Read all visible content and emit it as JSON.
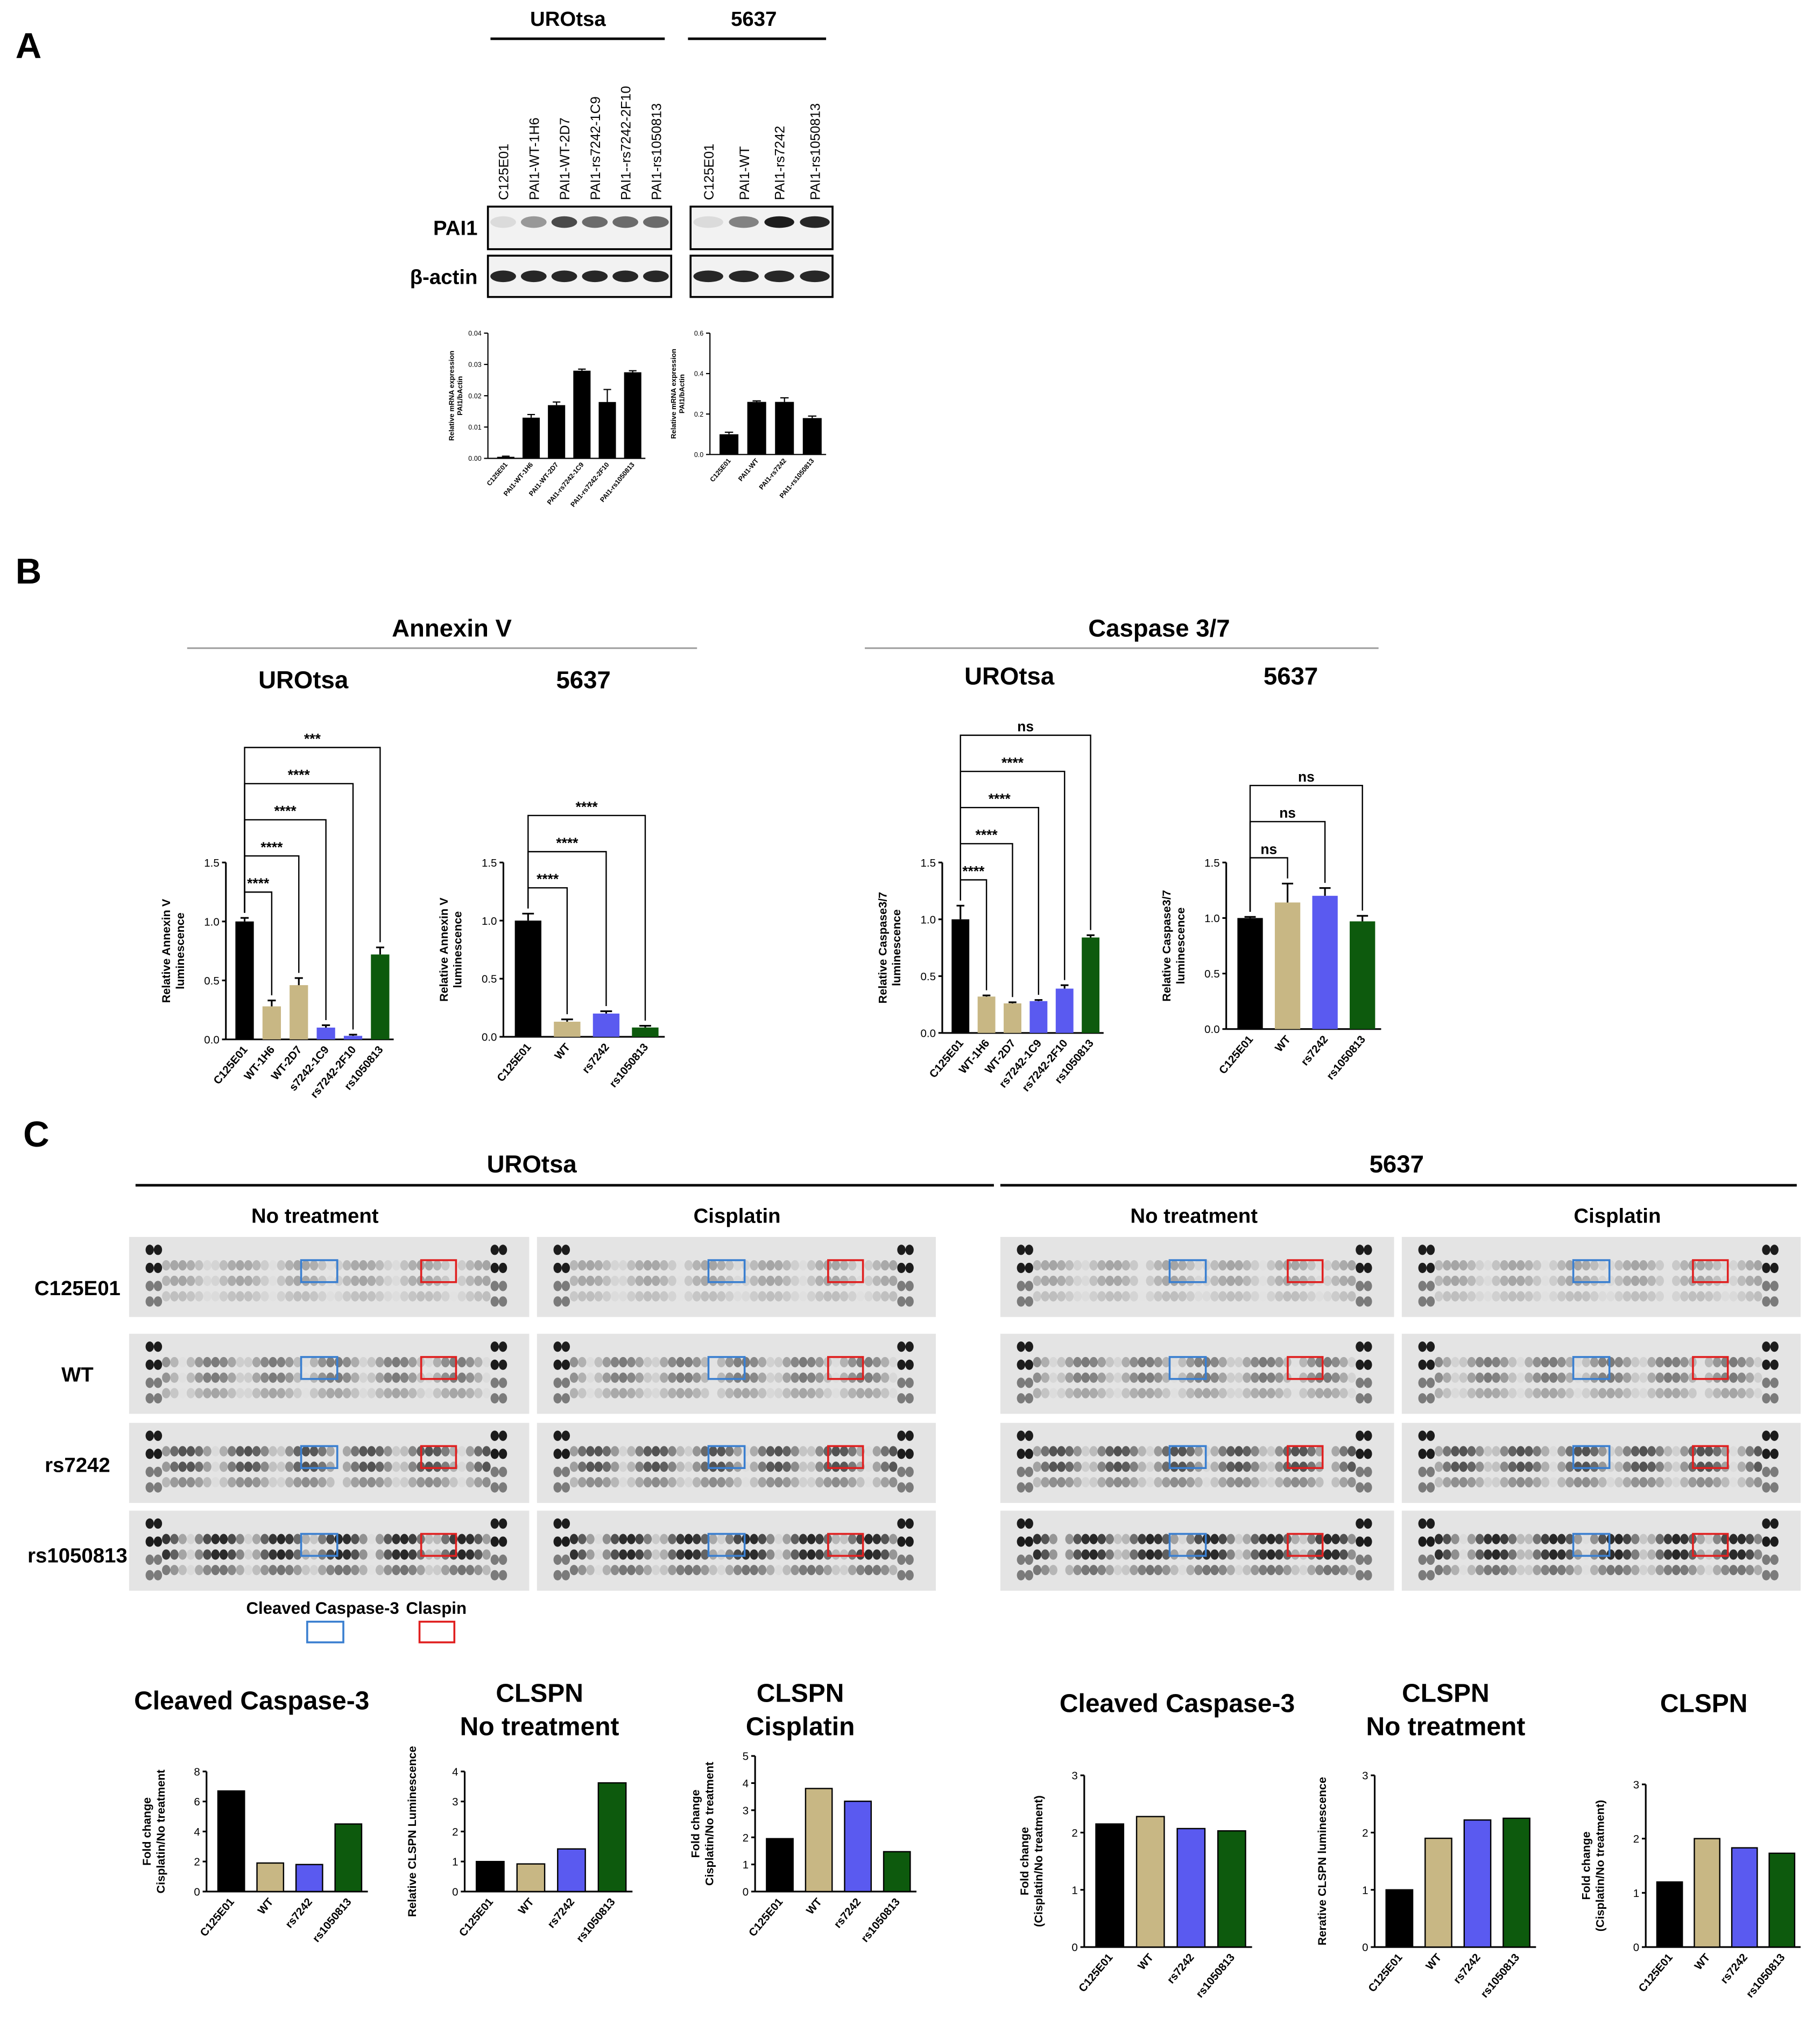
{
  "panels": {
    "a": "A",
    "b": "B",
    "c": "C"
  },
  "blot": {
    "groups": [
      {
        "name": "UROtsa",
        "lanes": [
          "C125E01",
          "PAI1-WT-1H6",
          "PAI1-WT-2D7",
          "PAI1-rs7242-1C9",
          "PAI1--rs7242-2F10",
          "PAI1-rs1050813"
        ]
      },
      {
        "name": "5637",
        "lanes": [
          "C125E01",
          "PAI1-WT",
          "PAI1-rs7242",
          "PAI1-rs1050813"
        ]
      }
    ],
    "rows": [
      "PAI1",
      "β-actin"
    ]
  },
  "apoptosis": {
    "headers": [
      "Annexin V",
      "Caspase 3/7"
    ]
  },
  "array": {
    "groups": [
      "UROtsa",
      "5637"
    ],
    "conditions": [
      "No treatment",
      "Cisplatin"
    ],
    "rows": [
      "C125E01",
      "WT",
      "rs7242",
      "rs1050813"
    ],
    "legend": [
      "Cleaved Caspase-3",
      "Claspin"
    ]
  },
  "chart_data": [
    {
      "type": "bar",
      "ylabel": [
        "Relative mRNA expression",
        "PAI1/bActin"
      ],
      "categories": [
        "C125E01",
        "PAI1-WT-1H6",
        "PAI1-WT-2D7",
        "PAI1-rs7242-1C9",
        "PAI1-rs7242-2F10",
        "PAI1-rs1050813"
      ],
      "values": [
        0.0005,
        0.013,
        0.017,
        0.028,
        0.018,
        0.0275
      ],
      "errors": [
        0.0002,
        0.001,
        0.001,
        0.0005,
        0.004,
        0.0005
      ],
      "color": "#000000",
      "ylim": [
        0,
        0.04
      ],
      "yticks": [
        {
          "value": 0,
          "label": "0.00"
        },
        0.01,
        0.02,
        0.03,
        0.04
      ]
    },
    {
      "type": "bar",
      "ylabel": [
        "Relative mRNA expression",
        "PAI1/bActin"
      ],
      "categories": [
        "C125E01",
        "PAI1-WT",
        "PAI1-rs7242",
        "PAI1-rs1050813"
      ],
      "values": [
        0.1,
        0.26,
        0.26,
        0.18
      ],
      "errors": [
        0.01,
        0.005,
        0.02,
        0.01
      ],
      "color": "#000000",
      "ylim": [
        0,
        0.6
      ],
      "yticks": [
        {
          "value": 0,
          "label": "0.0"
        },
        0.2,
        0.4,
        0.6
      ]
    },
    {
      "type": "bar",
      "title": "UROtsa",
      "ylabel": [
        "Relative Annexin V",
        "luminescence"
      ],
      "categories": [
        "C125E01",
        "WT-1H6",
        "WT-2D7",
        "s7242-1C9",
        "rs7242-2F10",
        "rs1050813"
      ],
      "values": [
        1.0,
        0.28,
        0.46,
        0.1,
        0.03,
        0.72
      ],
      "errors": [
        0.03,
        0.05,
        0.06,
        0.02,
        0.01,
        0.06
      ],
      "colors": [
        "#000000",
        "#c8b784",
        "#c8b784",
        "#5a5af0",
        "#5a5af0",
        "#0d5a0d"
      ],
      "significance": [
        "****",
        "****",
        "****",
        "****",
        "***"
      ],
      "ylim": [
        0,
        1.5
      ],
      "yticks": [
        {
          "value": 0,
          "label": "0.0"
        },
        0.5,
        {
          "value": 1,
          "label": "1.0"
        },
        1.5
      ]
    },
    {
      "type": "bar",
      "title": "5637",
      "ylabel": [
        "Relative Annexin V",
        "luminescence"
      ],
      "categories": [
        "C125E01",
        "WT",
        "rs7242",
        "rs1050813"
      ],
      "values": [
        1.0,
        0.13,
        0.2,
        0.08
      ],
      "errors": [
        0.06,
        0.02,
        0.02,
        0.015
      ],
      "colors": [
        "#000000",
        "#c8b784",
        "#5a5af0",
        "#0d5a0d"
      ],
      "significance": [
        "****",
        "****",
        "****"
      ],
      "ylim": [
        0,
        1.5
      ],
      "yticks": [
        {
          "value": 0,
          "label": "0.0"
        },
        0.5,
        {
          "value": 1,
          "label": "1.0"
        },
        1.5
      ]
    },
    {
      "type": "bar",
      "title": "UROtsa",
      "ylabel": [
        "Relative Caspase3/7",
        "luminescence"
      ],
      "categories": [
        "C125E01",
        "WT-1H6",
        "WT-2D7",
        "rs7242-1C9",
        "rs7242-2F10",
        "rs1050813"
      ],
      "values": [
        1.0,
        0.32,
        0.26,
        0.28,
        0.39,
        0.84
      ],
      "errors": [
        0.12,
        0.01,
        0.01,
        0.01,
        0.03,
        0.02
      ],
      "colors": [
        "#000000",
        "#c8b784",
        "#c8b784",
        "#5a5af0",
        "#5a5af0",
        "#0d5a0d"
      ],
      "significance": [
        "****",
        "****",
        "****",
        "****",
        "ns"
      ],
      "ylim": [
        0,
        1.5
      ],
      "yticks": [
        {
          "value": 0,
          "label": "0.0"
        },
        0.5,
        {
          "value": 1,
          "label": "1.0"
        },
        1.5
      ]
    },
    {
      "type": "bar",
      "title": "5637",
      "ylabel": [
        "Relative Caspase3/7",
        "luminescence"
      ],
      "categories": [
        "C125E01",
        "WT",
        "rs7242",
        "rs1050813"
      ],
      "values": [
        1.0,
        1.14,
        1.2,
        0.97
      ],
      "errors": [
        0.01,
        0.17,
        0.07,
        0.05
      ],
      "colors": [
        "#000000",
        "#c8b784",
        "#5a5af0",
        "#0d5a0d"
      ],
      "significance": [
        "ns",
        "ns",
        "ns"
      ],
      "ylim": [
        0,
        1.5
      ],
      "yticks": [
        {
          "value": 0,
          "label": "0.0"
        },
        0.5,
        {
          "value": 1,
          "label": "1.0"
        },
        1.5
      ]
    },
    {
      "type": "bar",
      "title": [
        "Cleaved Caspase-3"
      ],
      "ylabel": [
        "Fold change",
        "Cisplatin/No treatment"
      ],
      "categories": [
        "C125E01",
        "WT",
        "rs7242",
        "rs1050813"
      ],
      "values": [
        6.7,
        1.9,
        1.8,
        4.5
      ],
      "colors": [
        "#000000",
        "#c8b784",
        "#5a5af0",
        "#0d5a0d"
      ],
      "edgecolor": "#000000",
      "ylim": [
        0,
        8
      ],
      "yticks": [
        0,
        2,
        4,
        6,
        8
      ]
    },
    {
      "type": "bar",
      "title": [
        "CLSPN",
        "No treatment"
      ],
      "ylabel": [
        "Relative CLSPN Luminescence"
      ],
      "categories": [
        "C125E01",
        "WT",
        "rs7242",
        "rs1050813"
      ],
      "values": [
        1.0,
        0.92,
        1.42,
        3.62
      ],
      "colors": [
        "#000000",
        "#c8b784",
        "#5a5af0",
        "#0d5a0d"
      ],
      "edgecolor": "#000000",
      "ylim": [
        0,
        4
      ],
      "yticks": [
        0,
        1,
        2,
        3,
        4
      ]
    },
    {
      "type": "bar",
      "title": [
        "CLSPN",
        "Cisplatin"
      ],
      "ylabel": [
        "Fold change",
        "Cisplatin/No treatment"
      ],
      "categories": [
        "C125E01",
        "WT",
        "rs7242",
        "rs1050813"
      ],
      "values": [
        1.95,
        3.8,
        3.33,
        1.47
      ],
      "colors": [
        "#000000",
        "#c8b784",
        "#5a5af0",
        "#0d5a0d"
      ],
      "edgecolor": "#000000",
      "ylim": [
        0,
        5
      ],
      "yticks": [
        0,
        1,
        2,
        3,
        4,
        5
      ]
    },
    {
      "type": "bar",
      "title": [
        "Cleaved Caspase-3"
      ],
      "ylabel": [
        "Fold change",
        "(Cisplatin/No treatment)"
      ],
      "categories": [
        "C125E01",
        "WT",
        "rs7242",
        "rs1050813"
      ],
      "values": [
        2.15,
        2.28,
        2.07,
        2.03
      ],
      "colors": [
        "#000000",
        "#c8b784",
        "#5a5af0",
        "#0d5a0d"
      ],
      "edgecolor": "#000000",
      "ylim": [
        0,
        3
      ],
      "yticks": [
        0,
        1,
        2,
        3
      ]
    },
    {
      "type": "bar",
      "title": [
        "CLSPN",
        "No treatment"
      ],
      "ylabel": [
        "Rerative CLSPN luminescence"
      ],
      "categories": [
        "C125E01",
        "WT",
        "rs7242",
        "rs1050813"
      ],
      "values": [
        1.0,
        1.9,
        2.22,
        2.25
      ],
      "colors": [
        "#000000",
        "#c8b784",
        "#5a5af0",
        "#0d5a0d"
      ],
      "edgecolor": "#000000",
      "ylim": [
        0,
        3
      ],
      "yticks": [
        0,
        1,
        2,
        3
      ]
    },
    {
      "type": "bar",
      "title": [
        "CLSPN"
      ],
      "ylabel": [
        "Fold change",
        "(Cisplatin/No treatment)"
      ],
      "categories": [
        "C125E01",
        "WT",
        "rs7242",
        "rs1050813"
      ],
      "values": [
        1.2,
        2.0,
        1.83,
        1.73
      ],
      "colors": [
        "#000000",
        "#c8b784",
        "#5a5af0",
        "#0d5a0d"
      ],
      "edgecolor": "#000000",
      "ylim": [
        0,
        3
      ],
      "yticks": [
        0,
        1,
        2,
        3
      ]
    }
  ]
}
